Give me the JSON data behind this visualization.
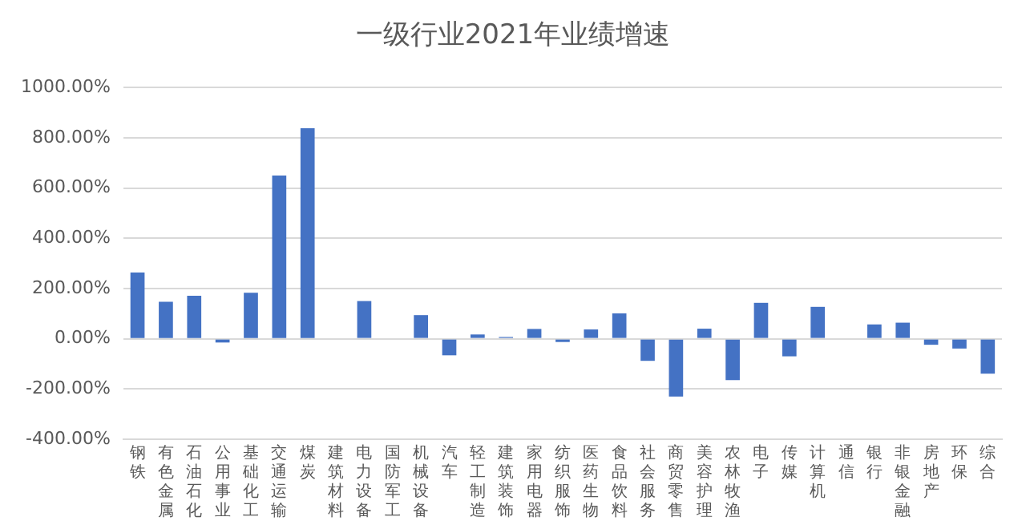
{
  "chart_data": {
    "type": "bar",
    "title": "一级行业2021年业绩增速",
    "categories": [
      "钢铁",
      "有色金属",
      "石油石化",
      "公用事业",
      "基础化工",
      "交通运输",
      "煤炭",
      "建筑材料",
      "电力设备",
      "国防军工",
      "机械设备",
      "汽车",
      "轻工制造",
      "建筑装饰",
      "家用电器",
      "纺织服饰",
      "医药生物",
      "食品饮料",
      "社会服务",
      "商贸零售",
      "美容护理",
      "农林牧渔",
      "电子",
      "传媒",
      "计算机",
      "通信",
      "银行",
      "非银金融",
      "房地产",
      "环保",
      "综合"
    ],
    "values": [
      264,
      147,
      171,
      -15,
      183,
      650,
      838,
      0,
      150,
      0,
      94,
      -66,
      17,
      7,
      39,
      -13,
      37,
      101,
      -88,
      -230,
      40,
      -165,
      143,
      -70,
      127,
      0,
      57,
      64,
      -24,
      -39,
      -139
    ],
    "color": "#4472c4",
    "ylim": [
      -400,
      1000
    ],
    "yticks": [
      {
        "value": -400,
        "label": "-400.00%"
      },
      {
        "value": -200,
        "label": "-200.00%"
      },
      {
        "value": 0,
        "label": "0.00%"
      },
      {
        "value": 200,
        "label": "200.00%"
      },
      {
        "value": 400,
        "label": "400.00%"
      },
      {
        "value": 600,
        "label": "600.00%"
      },
      {
        "value": 800,
        "label": "800.00%"
      },
      {
        "value": 1000,
        "label": "1000.00%"
      }
    ],
    "grid": "y"
  }
}
